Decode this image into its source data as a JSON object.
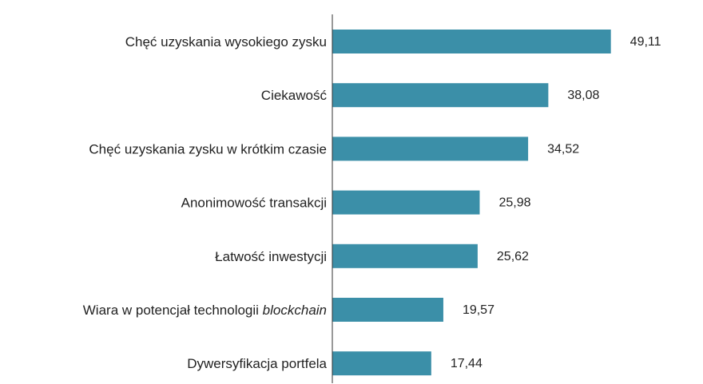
{
  "chart_data": {
    "type": "bar",
    "orientation": "horizontal",
    "categories": [
      {
        "text": "Chęć uzyskania wysokiego zysku"
      },
      {
        "text": "Ciekawość"
      },
      {
        "text": "Chęć uzyskania zysku w krótkim czasie"
      },
      {
        "text": "Anonimowość transakcji"
      },
      {
        "text": "Łatwość inwestycji"
      },
      {
        "text": "Wiara w potencjał technologii ",
        "italic_suffix": "blockchain"
      },
      {
        "text": "Dywersyfikacja portfela"
      }
    ],
    "values": [
      49.11,
      38.08,
      34.52,
      25.98,
      25.62,
      19.57,
      17.44
    ],
    "value_labels": [
      "49,11",
      "38,08",
      "34,52",
      "25,98",
      "25,62",
      "19,57",
      "17,44"
    ],
    "xlim": [
      0,
      50
    ],
    "grid": false,
    "bar_color": "#3b8fa8",
    "axis_color": "#333333"
  }
}
